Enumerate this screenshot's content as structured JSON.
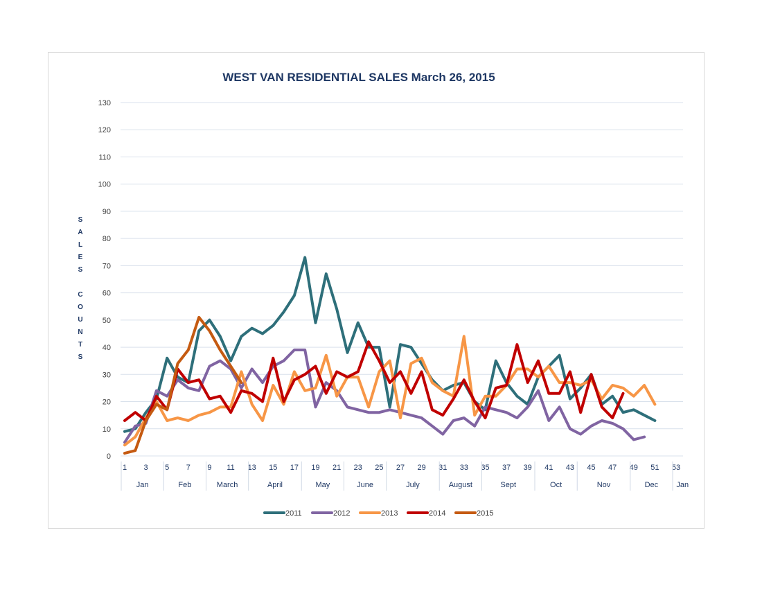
{
  "chart_data": {
    "type": "line",
    "title": "WEST VAN RESIDENTIAL SALES  March 26, 2015",
    "ylabel": "SALES COUNTS",
    "ylabel_letters": [
      "S",
      "A",
      "L",
      "E",
      "S",
      "",
      "C",
      "O",
      "U",
      "N",
      "T",
      "S"
    ],
    "ylim": [
      0,
      130
    ],
    "yticks": [
      0,
      10,
      20,
      30,
      40,
      50,
      60,
      70,
      80,
      90,
      100,
      110,
      120,
      130
    ],
    "xlim": [
      1,
      53
    ],
    "xticks": [
      1,
      3,
      5,
      7,
      9,
      11,
      13,
      15,
      17,
      19,
      21,
      23,
      25,
      27,
      29,
      31,
      33,
      35,
      37,
      39,
      41,
      43,
      45,
      47,
      49,
      51,
      53
    ],
    "months": [
      {
        "label": "Jan",
        "start": 1,
        "end": 5
      },
      {
        "label": "Feb",
        "start": 5,
        "end": 9
      },
      {
        "label": "March",
        "start": 9,
        "end": 13
      },
      {
        "label": "April",
        "start": 13,
        "end": 18
      },
      {
        "label": "May",
        "start": 18,
        "end": 22
      },
      {
        "label": "June",
        "start": 22,
        "end": 26
      },
      {
        "label": "July",
        "start": 26,
        "end": 31
      },
      {
        "label": "August",
        "start": 31,
        "end": 35
      },
      {
        "label": "Sept",
        "start": 35,
        "end": 40
      },
      {
        "label": "Oct",
        "start": 40,
        "end": 44
      },
      {
        "label": "Nov",
        "start": 44,
        "end": 49
      },
      {
        "label": "Dec",
        "start": 49,
        "end": 53
      },
      {
        "label": "Jan",
        "start": 53,
        "end": 53.3
      }
    ],
    "grid": true,
    "legend_position": "bottom",
    "series": [
      {
        "name": "2011",
        "color": "#2e6f7a",
        "x_start": 1,
        "values": [
          9,
          10,
          16,
          21,
          36,
          29,
          27,
          46,
          50,
          44,
          35,
          44,
          47,
          45,
          48,
          53,
          59,
          73,
          49,
          67,
          54,
          38,
          49,
          40,
          40,
          18,
          41,
          40,
          34,
          28,
          24,
          26,
          27,
          20,
          17,
          35,
          27,
          22,
          19,
          29,
          33,
          37,
          21,
          25,
          30,
          19,
          22,
          16,
          17,
          15,
          13
        ]
      },
      {
        "name": "2012",
        "color": "#8064a2",
        "x_start": 1,
        "values": [
          5,
          11,
          12,
          24,
          22,
          28,
          25,
          24,
          33,
          35,
          32,
          25,
          32,
          27,
          33,
          35,
          39,
          39,
          18,
          27,
          24,
          18,
          17,
          16,
          16,
          17,
          16,
          15,
          14,
          11,
          8,
          13,
          14,
          11,
          18,
          17,
          16,
          14,
          18,
          24,
          13,
          18,
          10,
          8,
          11,
          13,
          12,
          10,
          6,
          7
        ]
      },
      {
        "name": "2013",
        "color": "#f79646",
        "x_start": 1,
        "values": [
          4,
          7,
          14,
          20,
          13,
          14,
          13,
          15,
          16,
          18,
          18,
          31,
          19,
          13,
          26,
          19,
          31,
          24,
          25,
          37,
          22,
          29,
          29,
          18,
          31,
          35,
          14,
          34,
          36,
          27,
          24,
          22,
          44,
          15,
          22,
          22,
          26,
          32,
          32,
          29,
          33,
          27,
          27,
          26,
          28,
          21,
          26,
          25,
          22,
          26,
          19
        ]
      },
      {
        "name": "2014",
        "color": "#c00000",
        "x_start": 1,
        "values": [
          13,
          16,
          13,
          22,
          17,
          32,
          27,
          28,
          21,
          22,
          16,
          24,
          23,
          20,
          36,
          20,
          28,
          30,
          33,
          23,
          31,
          29,
          31,
          42,
          35,
          27,
          31,
          23,
          31,
          17,
          15,
          21,
          28,
          20,
          14,
          25,
          26,
          41,
          27,
          35,
          23,
          23,
          31,
          16,
          30,
          18,
          14,
          23
        ]
      },
      {
        "name": "2015",
        "color": "#c55a11",
        "x_start": 1,
        "values": [
          1,
          2,
          13,
          19,
          17,
          34,
          39,
          51,
          46,
          39,
          33,
          27
        ]
      }
    ]
  }
}
